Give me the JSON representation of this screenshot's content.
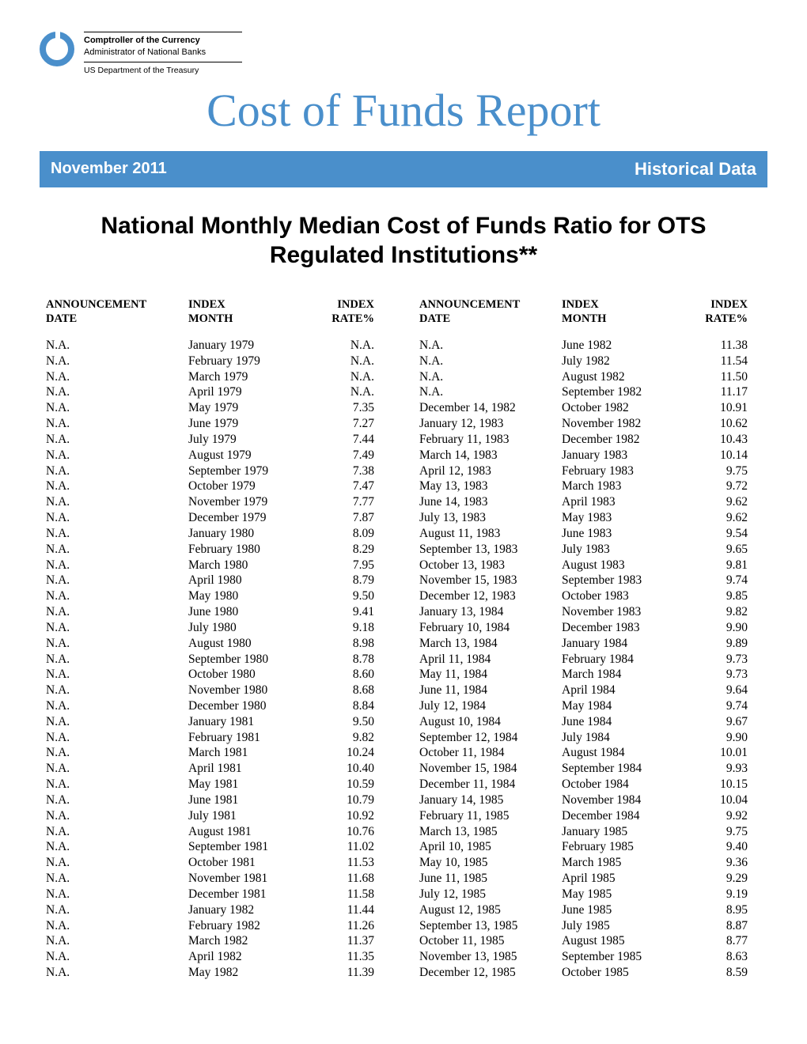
{
  "colors": {
    "brand_blue": "#4a8fcb",
    "text_black": "#000000",
    "background": "#ffffff"
  },
  "header": {
    "agency_line1": "Comptroller of the Currency",
    "agency_line2": "Administrator of National Banks",
    "agency_line3": "US Department of the Treasury"
  },
  "main_title": "Cost of Funds Report",
  "banner": {
    "left": "November 2011",
    "right": "Historical Data"
  },
  "subtitle": "National Monthly Median Cost of Funds Ratio for OTS Regulated Institutions**",
  "table": {
    "headers": {
      "announcement_date": "ANNOUNCEMENT DATE",
      "index_month": "INDEX MONTH",
      "index_rate": "INDEX RATE%"
    },
    "left_rows": [
      {
        "ann": "N.A.",
        "month": "January 1979",
        "rate": "N.A."
      },
      {
        "ann": "N.A.",
        "month": "February 1979",
        "rate": "N.A."
      },
      {
        "ann": "N.A.",
        "month": "March 1979",
        "rate": "N.A."
      },
      {
        "ann": "N.A.",
        "month": "April 1979",
        "rate": "N.A."
      },
      {
        "ann": "N.A.",
        "month": "May 1979",
        "rate": "7.35"
      },
      {
        "ann": "N.A.",
        "month": "June 1979",
        "rate": "7.27"
      },
      {
        "ann": "N.A.",
        "month": "July 1979",
        "rate": "7.44"
      },
      {
        "ann": "N.A.",
        "month": "August 1979",
        "rate": "7.49"
      },
      {
        "ann": "N.A.",
        "month": "September 1979",
        "rate": "7.38"
      },
      {
        "ann": "N.A.",
        "month": "October 1979",
        "rate": "7.47"
      },
      {
        "ann": "N.A.",
        "month": "November 1979",
        "rate": "7.77"
      },
      {
        "ann": "N.A.",
        "month": "December 1979",
        "rate": "7.87"
      },
      {
        "ann": "N.A.",
        "month": "January 1980",
        "rate": "8.09"
      },
      {
        "ann": "N.A.",
        "month": "February 1980",
        "rate": "8.29"
      },
      {
        "ann": "N.A.",
        "month": "March 1980",
        "rate": "7.95"
      },
      {
        "ann": "N.A.",
        "month": "April 1980",
        "rate": "8.79"
      },
      {
        "ann": "N.A.",
        "month": "May 1980",
        "rate": "9.50"
      },
      {
        "ann": "N.A.",
        "month": "June 1980",
        "rate": "9.41"
      },
      {
        "ann": "N.A.",
        "month": "July 1980",
        "rate": "9.18"
      },
      {
        "ann": "N.A.",
        "month": "August 1980",
        "rate": "8.98"
      },
      {
        "ann": "N.A.",
        "month": "September 1980",
        "rate": "8.78"
      },
      {
        "ann": "N.A.",
        "month": "October 1980",
        "rate": "8.60"
      },
      {
        "ann": "N.A.",
        "month": "November 1980",
        "rate": "8.68"
      },
      {
        "ann": "N.A.",
        "month": "December 1980",
        "rate": "8.84"
      },
      {
        "ann": "N.A.",
        "month": "January 1981",
        "rate": "9.50"
      },
      {
        "ann": "N.A.",
        "month": "February 1981",
        "rate": "9.82"
      },
      {
        "ann": "N.A.",
        "month": "March 1981",
        "rate": "10.24"
      },
      {
        "ann": "N.A.",
        "month": "April 1981",
        "rate": "10.40"
      },
      {
        "ann": "N.A.",
        "month": "May 1981",
        "rate": "10.59"
      },
      {
        "ann": "N.A.",
        "month": "June 1981",
        "rate": "10.79"
      },
      {
        "ann": "N.A.",
        "month": "July 1981",
        "rate": "10.92"
      },
      {
        "ann": "N.A.",
        "month": "August 1981",
        "rate": "10.76"
      },
      {
        "ann": "N.A.",
        "month": "September 1981",
        "rate": "11.02"
      },
      {
        "ann": "N.A.",
        "month": "October 1981",
        "rate": "11.53"
      },
      {
        "ann": "N.A.",
        "month": "November 1981",
        "rate": "11.68"
      },
      {
        "ann": "N.A.",
        "month": "December 1981",
        "rate": "11.58"
      },
      {
        "ann": "N.A.",
        "month": "January 1982",
        "rate": "11.44"
      },
      {
        "ann": "N.A.",
        "month": "February 1982",
        "rate": "11.26"
      },
      {
        "ann": "N.A.",
        "month": "March 1982",
        "rate": "11.37"
      },
      {
        "ann": "N.A.",
        "month": "April 1982",
        "rate": "11.35"
      },
      {
        "ann": "N.A.",
        "month": "May 1982",
        "rate": "11.39"
      }
    ],
    "right_rows": [
      {
        "ann": "N.A.",
        "month": "June 1982",
        "rate": "11.38"
      },
      {
        "ann": "N.A.",
        "month": "July 1982",
        "rate": "11.54"
      },
      {
        "ann": "N.A.",
        "month": "August 1982",
        "rate": "11.50"
      },
      {
        "ann": "N.A.",
        "month": "September 1982",
        "rate": "11.17"
      },
      {
        "ann": "December 14, 1982",
        "month": "October 1982",
        "rate": "10.91"
      },
      {
        "ann": "January 12, 1983",
        "month": "November 1982",
        "rate": "10.62"
      },
      {
        "ann": "February 11, 1983",
        "month": "December 1982",
        "rate": "10.43"
      },
      {
        "ann": "March 14, 1983",
        "month": "January 1983",
        "rate": "10.14"
      },
      {
        "ann": "April 12, 1983",
        "month": "February 1983",
        "rate": "9.75"
      },
      {
        "ann": "May 13, 1983",
        "month": "March 1983",
        "rate": "9.72"
      },
      {
        "ann": "June 14, 1983",
        "month": "April 1983",
        "rate": "9.62"
      },
      {
        "ann": "July 13, 1983",
        "month": "May 1983",
        "rate": "9.62"
      },
      {
        "ann": "August 11, 1983",
        "month": "June 1983",
        "rate": "9.54"
      },
      {
        "ann": "September 13, 1983",
        "month": "July 1983",
        "rate": "9.65"
      },
      {
        "ann": "October 13, 1983",
        "month": "August 1983",
        "rate": "9.81"
      },
      {
        "ann": "November 15, 1983",
        "month": "September 1983",
        "rate": "9.74"
      },
      {
        "ann": "December 12, 1983",
        "month": "October 1983",
        "rate": "9.85"
      },
      {
        "ann": "January 13, 1984",
        "month": "November 1983",
        "rate": "9.82"
      },
      {
        "ann": "February 10, 1984",
        "month": "December 1983",
        "rate": "9.90"
      },
      {
        "ann": "March 13, 1984",
        "month": "January 1984",
        "rate": "9.89"
      },
      {
        "ann": "April 11, 1984",
        "month": "February 1984",
        "rate": "9.73"
      },
      {
        "ann": "May 11, 1984",
        "month": "March 1984",
        "rate": "9.73"
      },
      {
        "ann": "June 11, 1984",
        "month": "April 1984",
        "rate": "9.64"
      },
      {
        "ann": "July 12, 1984",
        "month": "May 1984",
        "rate": "9.74"
      },
      {
        "ann": "August 10, 1984",
        "month": "June 1984",
        "rate": "9.67"
      },
      {
        "ann": "September 12, 1984",
        "month": "July 1984",
        "rate": "9.90"
      },
      {
        "ann": "October 11, 1984",
        "month": "August 1984",
        "rate": "10.01"
      },
      {
        "ann": "November 15, 1984",
        "month": "September 1984",
        "rate": "9.93"
      },
      {
        "ann": "December 11, 1984",
        "month": "October 1984",
        "rate": "10.15"
      },
      {
        "ann": "January 14, 1985",
        "month": "November 1984",
        "rate": "10.04"
      },
      {
        "ann": "February 11, 1985",
        "month": "December 1984",
        "rate": "9.92"
      },
      {
        "ann": "March 13, 1985",
        "month": "January 1985",
        "rate": "9.75"
      },
      {
        "ann": "April 10, 1985",
        "month": "February 1985",
        "rate": "9.40"
      },
      {
        "ann": "May 10, 1985",
        "month": "March 1985",
        "rate": "9.36"
      },
      {
        "ann": "June 11, 1985",
        "month": "April 1985",
        "rate": "9.29"
      },
      {
        "ann": "July 12, 1985",
        "month": "May 1985",
        "rate": "9.19"
      },
      {
        "ann": "August 12, 1985",
        "month": "June 1985",
        "rate": "8.95"
      },
      {
        "ann": "September 13, 1985",
        "month": "July 1985",
        "rate": "8.87"
      },
      {
        "ann": "October 11, 1985",
        "month": "August 1985",
        "rate": "8.77"
      },
      {
        "ann": "November 13, 1985",
        "month": "September 1985",
        "rate": "8.63"
      },
      {
        "ann": "December 12, 1985",
        "month": "October 1985",
        "rate": "8.59"
      }
    ]
  }
}
